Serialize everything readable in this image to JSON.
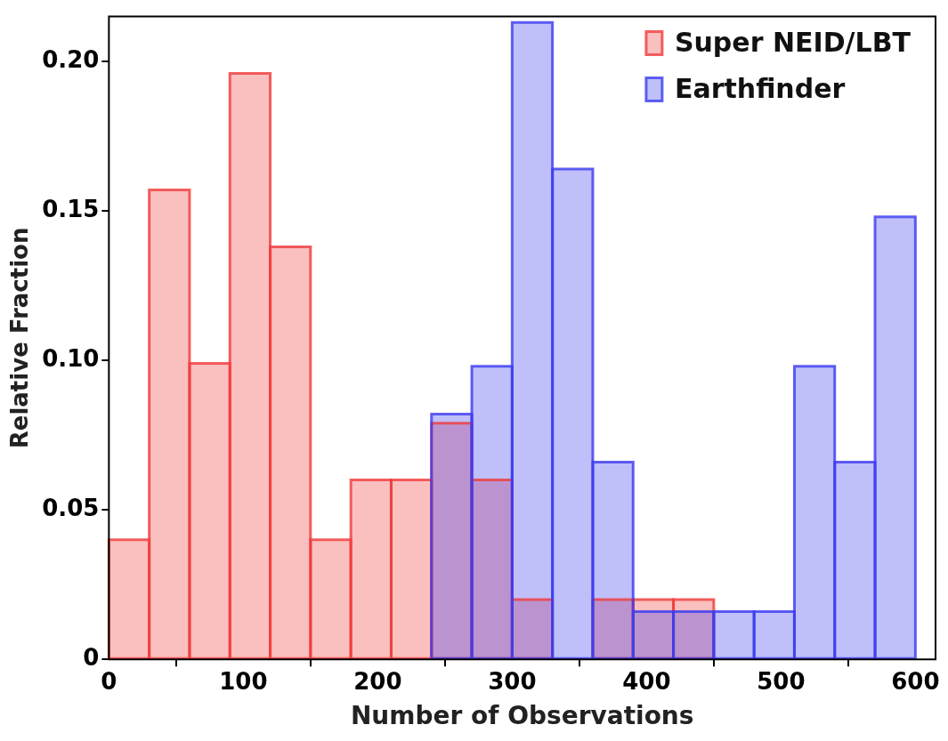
{
  "chart_data": {
    "type": "histogram",
    "xlabel": "Number of Observations",
    "ylabel": "Relative Fraction",
    "bins": [
      0,
      30,
      60,
      90,
      120,
      150,
      180,
      210,
      240,
      270,
      300,
      330,
      360,
      390,
      420,
      450,
      480,
      510,
      540,
      570,
      600
    ],
    "series": [
      {
        "name": "Super NEID/LBT",
        "color": "#f03c3c",
        "values": [
          0.04,
          0.157,
          0.099,
          0.196,
          0.138,
          0.04,
          0.06,
          0.06,
          0.079,
          0.06,
          0.02,
          0,
          0.02,
          0.02,
          0.02,
          0,
          0,
          0,
          0,
          0
        ]
      },
      {
        "name": "Earthfinder",
        "color": "#3c3cf0",
        "values": [
          0,
          0,
          0,
          0,
          0,
          0,
          0,
          0,
          0.082,
          0.098,
          0.213,
          0.164,
          0.066,
          0.016,
          0.016,
          0.016,
          0.016,
          0.098,
          0.066,
          0.148
        ]
      }
    ],
    "xlim": [
      0,
      615
    ],
    "ylim": [
      0,
      0.215
    ],
    "xticks": [
      0,
      100,
      200,
      300,
      400,
      500,
      600
    ],
    "yticks": [
      0,
      0.05,
      {
        "value": 0.1,
        "label": "0.10"
      },
      0.15,
      {
        "value": 0.2,
        "label": "0.20"
      }
    ],
    "legend": "top right",
    "grid": false
  }
}
